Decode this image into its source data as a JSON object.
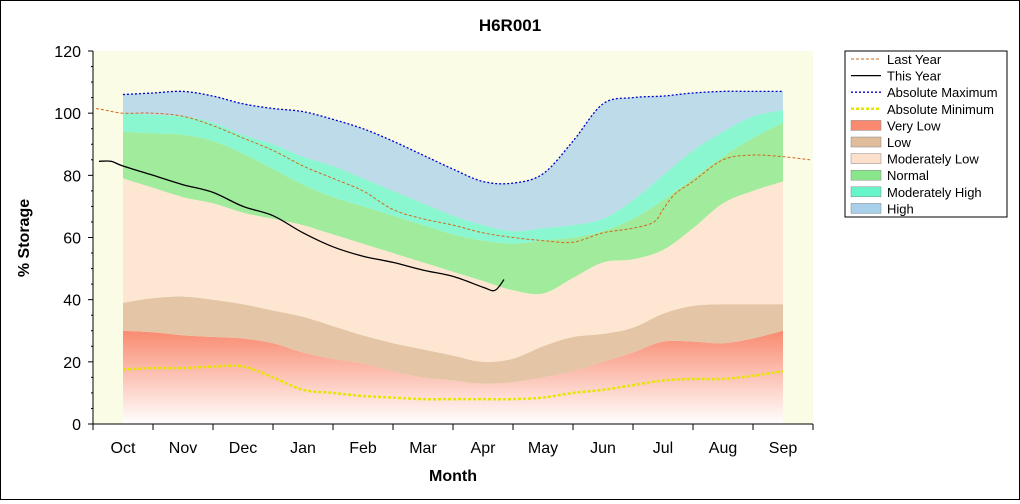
{
  "chart_data": {
    "type": "area",
    "title": "H6R001",
    "xlabel": "Month",
    "ylabel": "% Storage",
    "ylim": [
      0,
      120
    ],
    "yticks": [
      0,
      20,
      40,
      60,
      80,
      100,
      120
    ],
    "xlim": [
      -0.5,
      11.5
    ],
    "x_labels": [
      "Oct",
      "Nov",
      "Dec",
      "Jan",
      "Feb",
      "Mar",
      "Apr",
      "May",
      "Jun",
      "Jul",
      "Aug",
      "Sep"
    ],
    "legend_position": "right",
    "colors": {
      "plot_bg": "#fbfce6",
      "last_year": "#d2691e",
      "this_year": "#000000",
      "abs_max": "#0000cc",
      "abs_min": "#e6e600",
      "very_low": "#f98a70",
      "low": "#dfbc9a",
      "moderately_low": "#fde0cc",
      "normal": "#8ae68a",
      "moderately_high": "#66f5c8",
      "high": "#a8d0ea"
    },
    "bands": {
      "x": [
        0,
        0.5,
        1,
        1.5,
        2,
        2.5,
        3,
        3.5,
        4,
        4.5,
        5,
        5.5,
        6,
        6.5,
        7,
        7.5,
        8,
        8.5,
        9,
        9.5,
        10,
        10.5,
        11
      ],
      "very_low_top": [
        30,
        29.5,
        28.5,
        28,
        27.5,
        26,
        23,
        21,
        19.5,
        17,
        15,
        14,
        13,
        13.5,
        15,
        17,
        20,
        23,
        26.5,
        26.5,
        26,
        27.5,
        30
      ],
      "low_top": [
        39,
        40.5,
        41,
        40,
        38.5,
        36.5,
        34.5,
        31.5,
        28.5,
        26,
        24,
        22,
        20,
        21,
        25,
        28,
        29,
        31,
        35.5,
        38,
        38.5,
        38.5,
        38.5
      ],
      "moderately_low_top": [
        79,
        76,
        73,
        71,
        68,
        66,
        64,
        61,
        58,
        55,
        52,
        49,
        46,
        43,
        42,
        47,
        52,
        53,
        56,
        63,
        71,
        75,
        78
      ],
      "normal_top": [
        94,
        93.5,
        93,
        91,
        87,
        82,
        77,
        73,
        70,
        67,
        64,
        61,
        59,
        58,
        59,
        60,
        62,
        66,
        72,
        79,
        86,
        92,
        97
      ],
      "moderately_high_top": [
        100,
        99.5,
        99,
        97,
        93,
        90,
        86,
        83,
        79,
        75,
        71,
        67,
        64,
        62,
        63,
        64,
        66,
        72,
        80,
        88,
        94,
        99,
        101
      ],
      "high_top": [
        106,
        106.5,
        107,
        105.5,
        103,
        101.5,
        100.5,
        98,
        95,
        91,
        86.5,
        82,
        78,
        77.5,
        80.5,
        91,
        103,
        105,
        105.5,
        106.5,
        107,
        107,
        107
      ]
    },
    "series": [
      {
        "name": "Last Year",
        "x": [
          -0.45,
          -0.3,
          0,
          0.5,
          1,
          1.5,
          2,
          2.5,
          3,
          3.5,
          4,
          4.5,
          5,
          5.5,
          6,
          6.5,
          7,
          7.5,
          8,
          8.5,
          8.85,
          9,
          9.2,
          9.5,
          10,
          10.5,
          11,
          11.45
        ],
        "y": [
          101.5,
          101,
          100,
          100,
          99,
          96,
          92,
          88,
          83,
          79,
          75,
          69,
          66,
          64,
          61.5,
          60,
          59,
          58.5,
          61.5,
          63,
          65,
          69,
          74,
          78,
          85,
          86.5,
          86,
          85
        ]
      },
      {
        "name": "This Year",
        "x": [
          -0.4,
          -0.2,
          0,
          0.5,
          1,
          1.5,
          2,
          2.5,
          3,
          3.5,
          4,
          4.5,
          5,
          5.5,
          6,
          6.2,
          6.35
        ],
        "y": [
          84.5,
          84.5,
          83,
          80,
          77,
          74.5,
          70,
          67,
          61.5,
          57,
          54,
          52,
          49.5,
          47.5,
          44,
          43,
          46.5
        ]
      },
      {
        "name": "Absolute Maximum",
        "x": [
          0,
          0.5,
          1,
          1.5,
          2,
          2.5,
          3,
          3.5,
          4,
          4.5,
          5,
          5.5,
          6,
          6.5,
          7,
          7.5,
          8,
          8.5,
          9,
          9.5,
          10,
          10.5,
          11
        ],
        "y": [
          106,
          106.5,
          107,
          105.5,
          103,
          101.5,
          100.5,
          98,
          95,
          91,
          86.5,
          82,
          78,
          77.5,
          80.5,
          91,
          103,
          105,
          105.5,
          106.5,
          107,
          107,
          107
        ]
      },
      {
        "name": "Absolute Minimum",
        "x": [
          0,
          0.5,
          1,
          1.5,
          2,
          2.5,
          3,
          3.5,
          4,
          4.5,
          5,
          5.5,
          6,
          6.5,
          7,
          7.5,
          8,
          8.5,
          9,
          9.5,
          10,
          10.5,
          11
        ],
        "y": [
          17.5,
          18,
          18,
          18.5,
          18.5,
          15,
          11,
          10,
          9,
          8.5,
          8,
          8,
          8,
          8,
          8.5,
          10,
          11,
          12.5,
          14,
          14.5,
          14.5,
          15.5,
          17
        ]
      }
    ],
    "legend": [
      {
        "label": "Last Year",
        "kind": "line",
        "color": "#d2691e",
        "dash": "3,2",
        "width": 1
      },
      {
        "label": "This Year",
        "kind": "line",
        "color": "#000000",
        "dash": "",
        "width": 1.3
      },
      {
        "label": "Absolute Maximum",
        "kind": "line",
        "color": "#0000cc",
        "dash": "2,2",
        "width": 1.3
      },
      {
        "label": "Absolute Minimum",
        "kind": "line",
        "color": "#e6e600",
        "dash": "3,2",
        "width": 2.5
      },
      {
        "label": "Very Low",
        "kind": "box",
        "color": "#f98a70"
      },
      {
        "label": "Low",
        "kind": "box",
        "color": "#dfbc9a"
      },
      {
        "label": "Moderately Low",
        "kind": "box",
        "color": "#fde0cc"
      },
      {
        "label": "Normal",
        "kind": "box",
        "color": "#8ae68a"
      },
      {
        "label": "Moderately High",
        "kind": "box",
        "color": "#66f5c8"
      },
      {
        "label": "High",
        "kind": "box",
        "color": "#a8d0ea"
      }
    ]
  }
}
